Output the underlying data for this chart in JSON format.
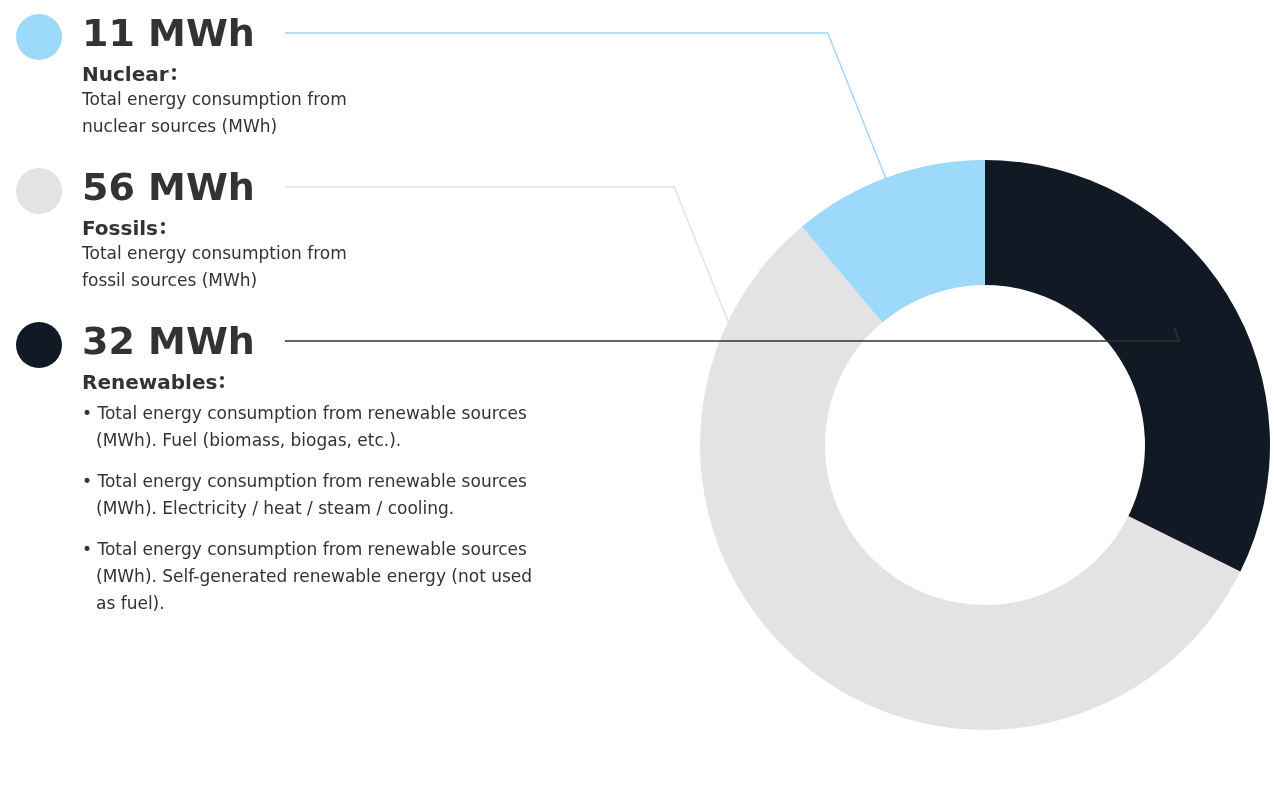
{
  "chart_data": {
    "type": "donut",
    "categories": [
      "Nuclear",
      "Fossils",
      "Renewables"
    ],
    "values": [
      11,
      56,
      32
    ],
    "value_labels": [
      "11 MWh",
      "56 MWh",
      "32 MWh"
    ],
    "colors": [
      "#9dd9fb",
      "#e3e3e3",
      "#111a24"
    ],
    "annotations": [
      "Total energy consumption from nuclear sources (MWh)",
      "Total energy consumption from fossil sources (MWh)",
      "• Total energy consumption from renewable sources (MWh). Fuel (biomass, biogas, etc.).",
      "• Total energy consumption from renewable sources (MWh). Electricity / heat / steam / cooling.",
      "• Total energy consumption from renewable sources (MWh). Self-generated renewable energy (not used as fuel)."
    ]
  }
}
